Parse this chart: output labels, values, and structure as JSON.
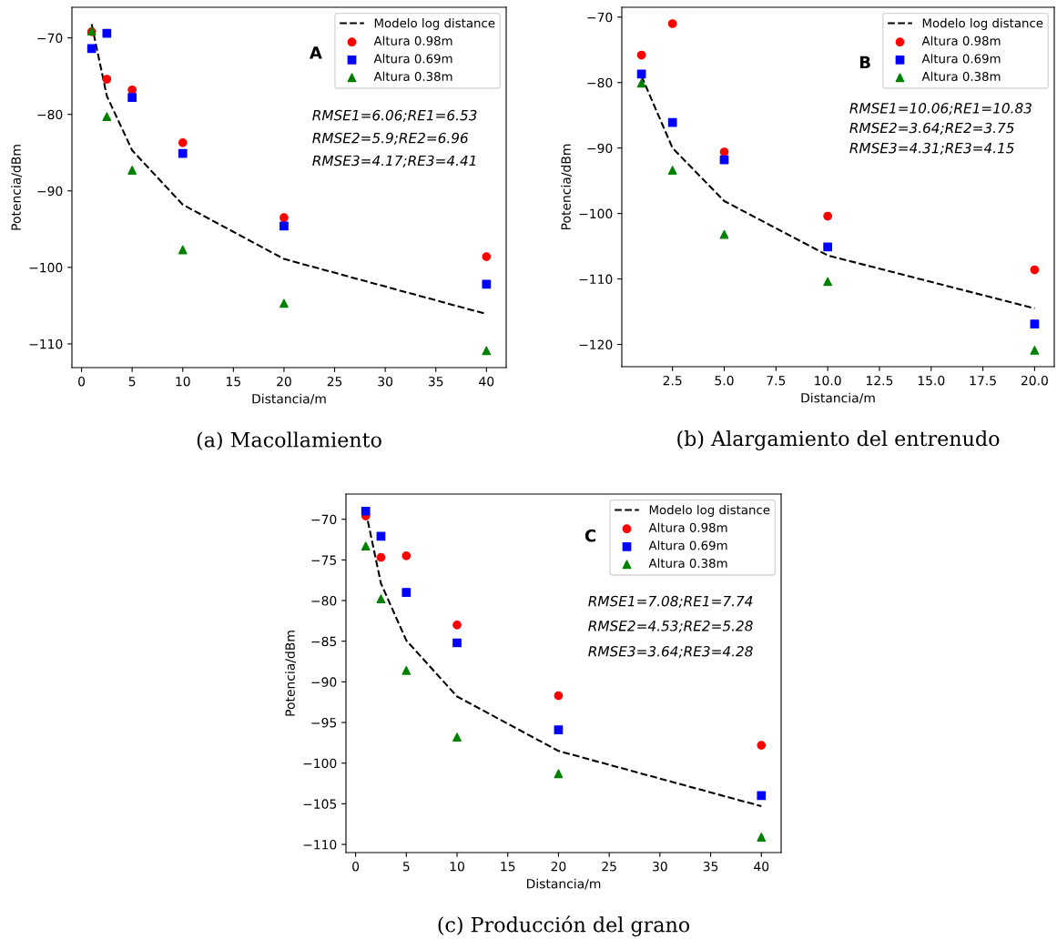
{
  "chart_data": [
    {
      "type": "scatter",
      "xlabel": "Distancia/m",
      "ylabel": "Potencia/dBm",
      "legend": "top right",
      "xlim": [
        -0.95,
        41.95
      ],
      "ylim": [
        -113.1,
        -66.0
      ],
      "xticks": [
        0,
        5,
        10,
        15,
        20,
        25,
        30,
        35,
        40
      ],
      "yticks": [
        {
          "value": -110,
          "label": "−110"
        },
        {
          "value": -100,
          "label": "−100"
        },
        {
          "value": -90,
          "label": "−90"
        },
        {
          "value": -80,
          "label": "−80"
        },
        {
          "value": -70,
          "label": "−70"
        }
      ],
      "annotations": [
        "A",
        "RMSE1=6.06;RE1=6.53",
        "RMSE2=5.9;RE2=6.96",
        "RMSE3=4.17;RE3=4.41",
        "(a) Macollamiento"
      ],
      "series": [
        {
          "name": "Modelo log distance",
          "type": "line",
          "line_style": "dashed",
          "marker": "none",
          "color": "#000000",
          "x": [
            1,
            2.5,
            5,
            10,
            20,
            40
          ],
          "values": [
            -68.2,
            -77.6,
            -84.7,
            -91.8,
            -98.9,
            -106.1
          ]
        },
        {
          "name": "Altura 0.98m",
          "marker": "circle",
          "color": "#ff0000",
          "x": [
            1,
            2.5,
            5,
            10,
            20,
            40
          ],
          "values": [
            -69.2,
            -75.4,
            -76.8,
            -83.7,
            -93.5,
            -98.6
          ]
        },
        {
          "name": "Altura 0.69m",
          "marker": "square",
          "color": "#0000ff",
          "x": [
            1,
            2.5,
            5,
            10,
            20,
            40
          ],
          "values": [
            -71.4,
            -69.4,
            -77.8,
            -85.1,
            -94.6,
            -102.2
          ]
        },
        {
          "name": "Altura 0.38m",
          "marker": "triangle",
          "color": "#008000",
          "x": [
            1,
            2.5,
            5,
            10,
            20,
            40
          ],
          "values": [
            -69.1,
            -80.3,
            -87.3,
            -97.7,
            -104.7,
            -110.9
          ]
        }
      ]
    },
    {
      "type": "scatter",
      "xlabel": "Distancia/m",
      "ylabel": "Potencia/dBm",
      "legend": "top right",
      "xlim": [
        0.05,
        20.95
      ],
      "ylim": [
        -123.4,
        -68.5
      ],
      "xticks": [
        2.5,
        {
          "value": 5,
          "label": "5.0"
        },
        7.5,
        {
          "value": 10,
          "label": "10.0"
        },
        12.5,
        {
          "value": 15,
          "label": "15.0"
        },
        17.5,
        {
          "value": 20,
          "label": "20.0"
        }
      ],
      "yticks": [
        {
          "value": -120,
          "label": "−120"
        },
        {
          "value": -110,
          "label": "−110"
        },
        {
          "value": -100,
          "label": "−100"
        },
        {
          "value": -90,
          "label": "−90"
        },
        {
          "value": -80,
          "label": "−80"
        },
        {
          "value": -70,
          "label": "−70"
        }
      ],
      "annotations": [
        "B",
        "RMSE1=10.06;RE1=10.83",
        "RMSE2=3.64;RE2=3.75",
        "RMSE3=4.31;RE3=4.15",
        "(b) Alargamiento del entrenudo"
      ],
      "series": [
        {
          "name": "Modelo log distance",
          "type": "line",
          "line_style": "dashed",
          "marker": "none",
          "color": "#000000",
          "x": [
            1,
            2.5,
            5,
            10,
            20
          ],
          "values": [
            -79.0,
            -90.0,
            -98.1,
            -106.4,
            -114.5
          ]
        },
        {
          "name": "Altura 0.98m",
          "marker": "circle",
          "color": "#ff0000",
          "x": [
            1,
            2.5,
            5,
            10,
            20
          ],
          "values": [
            -75.8,
            -71.0,
            -90.6,
            -100.4,
            -108.6
          ]
        },
        {
          "name": "Altura 0.69m",
          "marker": "square",
          "color": "#0000ff",
          "x": [
            1,
            2.5,
            5,
            10,
            20
          ],
          "values": [
            -78.7,
            -86.1,
            -91.8,
            -105.1,
            -116.9
          ]
        },
        {
          "name": "Altura 0.38m",
          "marker": "triangle",
          "color": "#008000",
          "x": [
            1,
            2.5,
            5,
            10,
            20
          ],
          "values": [
            -80.1,
            -93.4,
            -103.2,
            -110.4,
            -120.9
          ]
        }
      ]
    },
    {
      "type": "scatter",
      "xlabel": "Distancia/m",
      "ylabel": "Potencia/dBm",
      "legend": "top right",
      "xlim": [
        -0.95,
        41.95
      ],
      "ylim": [
        -111.0,
        -66.9
      ],
      "xticks": [
        0,
        5,
        10,
        15,
        20,
        25,
        30,
        35,
        40
      ],
      "yticks": [
        {
          "value": -110,
          "label": "−110"
        },
        {
          "value": -105,
          "label": "−105"
        },
        {
          "value": -100,
          "label": "−100"
        },
        {
          "value": -95,
          "label": "−95"
        },
        {
          "value": -90,
          "label": "−90"
        },
        {
          "value": -85,
          "label": "−85"
        },
        {
          "value": -80,
          "label": "−80"
        },
        {
          "value": -75,
          "label": "−75"
        },
        {
          "value": -70,
          "label": "−70"
        }
      ],
      "annotations": [
        "C",
        "RMSE1=7.08;RE1=7.74",
        "RMSE2=4.53;RE2=5.28",
        "RMSE3=3.64;RE3=4.28",
        "(c) Producción del grano"
      ],
      "series": [
        {
          "name": "Modelo log distance",
          "type": "line",
          "line_style": "dashed",
          "marker": "none",
          "color": "#000000",
          "x": [
            1,
            2.5,
            5,
            10,
            20,
            40
          ],
          "values": [
            -69.0,
            -77.9,
            -84.9,
            -91.8,
            -98.5,
            -105.3
          ]
        },
        {
          "name": "Altura 0.98m",
          "marker": "circle",
          "color": "#ff0000",
          "x": [
            1,
            2.5,
            5,
            10,
            20,
            40
          ],
          "values": [
            -69.6,
            -74.7,
            -74.5,
            -83.0,
            -91.7,
            -97.8
          ]
        },
        {
          "name": "Altura 0.69m",
          "marker": "square",
          "color": "#0000ff",
          "x": [
            1,
            2.5,
            5,
            10,
            20,
            40
          ],
          "values": [
            -69.0,
            -72.1,
            -79.0,
            -85.2,
            -95.9,
            -104.0
          ]
        },
        {
          "name": "Altura 0.38m",
          "marker": "triangle",
          "color": "#008000",
          "x": [
            1,
            2.5,
            5,
            10,
            20,
            40
          ],
          "values": [
            -73.3,
            -79.8,
            -88.6,
            -96.8,
            -101.3,
            -109.1
          ]
        }
      ]
    }
  ]
}
